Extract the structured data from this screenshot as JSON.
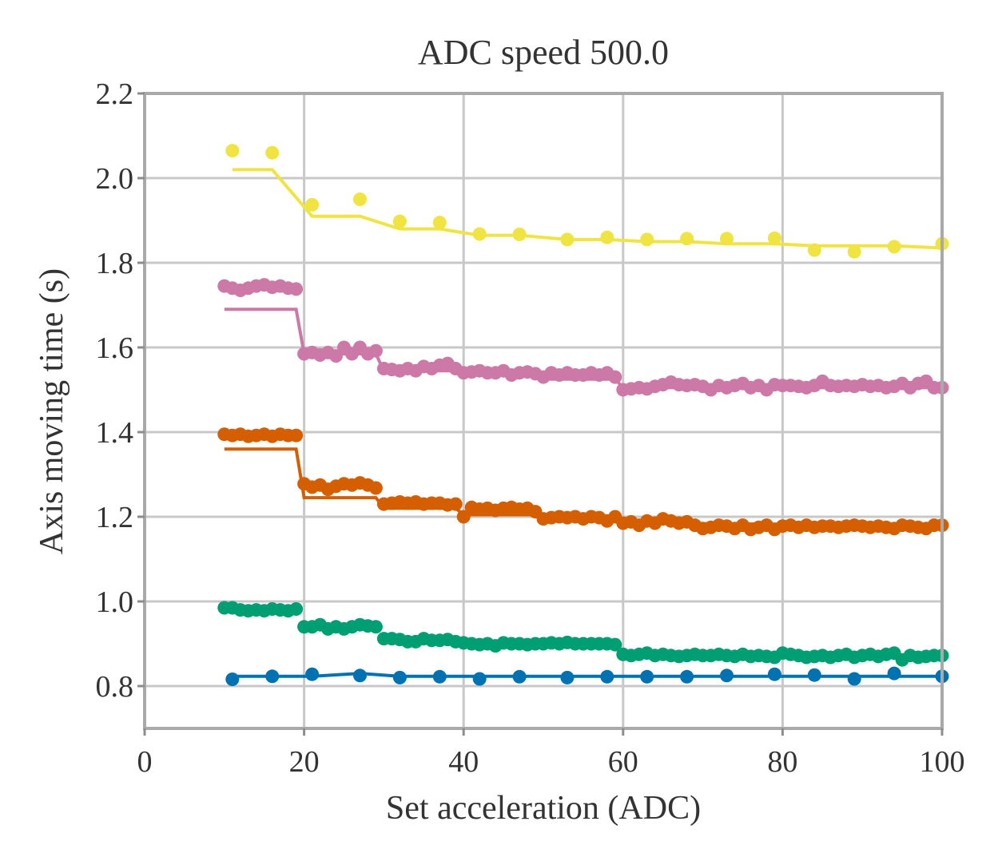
{
  "chart_data": {
    "type": "scatter",
    "title": "ADC speed 500.0",
    "xlabel": "Set acceleration (ADC)",
    "ylabel": "Axis moving time (s)",
    "xlim": [
      0,
      100
    ],
    "ylim": [
      0.7,
      2.2
    ],
    "xticks": [
      0,
      20,
      40,
      60,
      80,
      100
    ],
    "xtick_labels": [
      "0",
      "20",
      "40",
      "60",
      "80",
      "100"
    ],
    "yticks": [
      0.8,
      1.0,
      1.2,
      1.4,
      1.6,
      1.8,
      2.0,
      2.2
    ],
    "ytick_labels": [
      "0.8",
      "1.0",
      "1.2",
      "1.4",
      "1.6",
      "1.8",
      "2.0",
      "2.2"
    ],
    "grid": true,
    "legend": "none",
    "series": [
      {
        "color": "#f0e442",
        "points": {
          "x": [
            11,
            16,
            21,
            27,
            32,
            37,
            42,
            47,
            53,
            58,
            63,
            68,
            73,
            79,
            84,
            89,
            94,
            100
          ],
          "y": [
            2.065,
            2.06,
            1.937,
            1.95,
            1.898,
            1.895,
            1.868,
            1.867,
            1.855,
            1.86,
            1.855,
            1.857,
            1.857,
            1.858,
            1.83,
            1.826,
            1.838,
            1.845
          ]
        },
        "line": {
          "x": [
            11,
            16,
            21,
            27,
            32,
            37,
            42,
            47,
            53,
            58,
            63,
            68,
            73,
            79,
            84,
            89,
            94,
            100
          ],
          "y": [
            2.02,
            2.02,
            1.91,
            1.91,
            1.88,
            1.88,
            1.865,
            1.865,
            1.855,
            1.855,
            1.85,
            1.85,
            1.845,
            1.845,
            1.84,
            1.84,
            1.84,
            1.835
          ]
        }
      },
      {
        "color": "#cc79a7",
        "points": {
          "x": [
            10,
            11,
            12,
            13,
            14,
            15,
            16,
            17,
            18,
            19,
            20,
            21,
            22,
            23,
            24,
            25,
            26,
            27,
            28,
            29,
            30,
            31,
            32,
            33,
            34,
            35,
            36,
            37,
            38,
            39,
            40,
            41,
            42,
            43,
            44,
            45,
            46,
            47,
            48,
            49,
            50,
            51,
            52,
            53,
            54,
            55,
            56,
            57,
            58,
            59,
            60,
            61,
            62,
            63,
            64,
            65,
            66,
            67,
            68,
            69,
            70,
            71,
            72,
            73,
            74,
            75,
            76,
            77,
            78,
            79,
            80,
            81,
            82,
            83,
            84,
            85,
            86,
            87,
            88,
            89,
            90,
            91,
            92,
            93,
            94,
            95,
            96,
            97,
            98,
            99,
            100
          ],
          "y": [
            1.745,
            1.74,
            1.735,
            1.74,
            1.745,
            1.748,
            1.742,
            1.745,
            1.74,
            1.738,
            1.585,
            1.588,
            1.582,
            1.588,
            1.58,
            1.6,
            1.585,
            1.6,
            1.585,
            1.592,
            1.55,
            1.548,
            1.545,
            1.55,
            1.545,
            1.555,
            1.55,
            1.558,
            1.562,
            1.55,
            1.54,
            1.542,
            1.545,
            1.54,
            1.54,
            1.545,
            1.535,
            1.54,
            1.542,
            1.538,
            1.53,
            1.54,
            1.535,
            1.54,
            1.535,
            1.535,
            1.54,
            1.535,
            1.54,
            1.53,
            1.5,
            1.502,
            1.505,
            1.502,
            1.508,
            1.512,
            1.518,
            1.512,
            1.51,
            1.512,
            1.508,
            1.5,
            1.51,
            1.505,
            1.51,
            1.515,
            1.505,
            1.51,
            1.5,
            1.512,
            1.51,
            1.51,
            1.508,
            1.505,
            1.51,
            1.52,
            1.51,
            1.508,
            1.51,
            1.508,
            1.512,
            1.508,
            1.51,
            1.505,
            1.508,
            1.515,
            1.505,
            1.515,
            1.52,
            1.505,
            1.505
          ]
        },
        "line": {
          "x": [
            10,
            19,
            20,
            29,
            30,
            39,
            40,
            49,
            50,
            59,
            60,
            100
          ],
          "y": [
            1.69,
            1.69,
            1.585,
            1.585,
            1.545,
            1.545,
            1.535,
            1.535,
            1.525,
            1.525,
            1.505,
            1.505
          ]
        }
      },
      {
        "color": "#d55e00",
        "points": {
          "x": [
            10,
            11,
            12,
            13,
            14,
            15,
            16,
            17,
            18,
            19,
            20,
            21,
            22,
            23,
            24,
            25,
            26,
            27,
            28,
            29,
            30,
            31,
            32,
            33,
            34,
            35,
            36,
            37,
            38,
            39,
            40,
            41,
            42,
            43,
            44,
            45,
            46,
            47,
            48,
            49,
            50,
            51,
            52,
            53,
            54,
            55,
            56,
            57,
            58,
            59,
            60,
            61,
            62,
            63,
            64,
            65,
            66,
            67,
            68,
            69,
            70,
            71,
            72,
            73,
            74,
            75,
            76,
            77,
            78,
            79,
            80,
            81,
            82,
            83,
            84,
            85,
            86,
            87,
            88,
            89,
            90,
            91,
            92,
            93,
            94,
            95,
            96,
            97,
            98,
            99,
            100
          ],
          "y": [
            1.395,
            1.392,
            1.395,
            1.39,
            1.392,
            1.395,
            1.39,
            1.395,
            1.392,
            1.392,
            1.278,
            1.27,
            1.275,
            1.265,
            1.272,
            1.278,
            1.275,
            1.28,
            1.275,
            1.268,
            1.23,
            1.232,
            1.235,
            1.232,
            1.235,
            1.23,
            1.232,
            1.232,
            1.228,
            1.23,
            1.2,
            1.222,
            1.218,
            1.22,
            1.215,
            1.22,
            1.222,
            1.218,
            1.22,
            1.212,
            1.195,
            1.198,
            1.2,
            1.198,
            1.2,
            1.195,
            1.2,
            1.198,
            1.19,
            1.2,
            1.185,
            1.188,
            1.18,
            1.19,
            1.185,
            1.195,
            1.19,
            1.185,
            1.188,
            1.18,
            1.172,
            1.175,
            1.18,
            1.178,
            1.172,
            1.18,
            1.17,
            1.175,
            1.18,
            1.17,
            1.178,
            1.18,
            1.175,
            1.18,
            1.175,
            1.178,
            1.178,
            1.175,
            1.178,
            1.18,
            1.178,
            1.175,
            1.178,
            1.175,
            1.172,
            1.18,
            1.178,
            1.175,
            1.172,
            1.18,
            1.18
          ]
        },
        "line": {
          "x": [
            10,
            19,
            20,
            29,
            30,
            39,
            40,
            49,
            50,
            59,
            60,
            100
          ],
          "y": [
            1.36,
            1.36,
            1.245,
            1.245,
            1.22,
            1.22,
            1.205,
            1.205,
            1.195,
            1.195,
            1.185,
            1.18
          ]
        }
      },
      {
        "color": "#009e73",
        "points": {
          "x": [
            10,
            11,
            12,
            13,
            14,
            15,
            16,
            17,
            18,
            19,
            20,
            21,
            22,
            23,
            24,
            25,
            26,
            27,
            28,
            29,
            30,
            31,
            32,
            33,
            34,
            35,
            36,
            37,
            38,
            39,
            40,
            41,
            42,
            43,
            44,
            45,
            46,
            47,
            48,
            49,
            50,
            51,
            52,
            53,
            54,
            55,
            56,
            57,
            58,
            59,
            60,
            61,
            62,
            63,
            64,
            65,
            66,
            67,
            68,
            69,
            70,
            71,
            72,
            73,
            74,
            75,
            76,
            77,
            78,
            79,
            80,
            81,
            82,
            83,
            84,
            85,
            86,
            87,
            88,
            89,
            90,
            91,
            92,
            93,
            94,
            95,
            96,
            97,
            98,
            99,
            100
          ],
          "y": [
            0.985,
            0.985,
            0.98,
            0.978,
            0.98,
            0.978,
            0.982,
            0.98,
            0.978,
            0.982,
            0.94,
            0.94,
            0.945,
            0.935,
            0.94,
            0.935,
            0.94,
            0.945,
            0.942,
            0.94,
            0.912,
            0.912,
            0.91,
            0.905,
            0.905,
            0.912,
            0.908,
            0.908,
            0.91,
            0.905,
            0.902,
            0.9,
            0.898,
            0.9,
            0.895,
            0.902,
            0.9,
            0.9,
            0.898,
            0.9,
            0.9,
            0.902,
            0.9,
            0.903,
            0.9,
            0.9,
            0.9,
            0.9,
            0.9,
            0.898,
            0.875,
            0.872,
            0.875,
            0.878,
            0.872,
            0.875,
            0.872,
            0.87,
            0.872,
            0.875,
            0.872,
            0.872,
            0.875,
            0.872,
            0.87,
            0.875,
            0.87,
            0.872,
            0.87,
            0.868,
            0.878,
            0.875,
            0.872,
            0.868,
            0.87,
            0.872,
            0.868,
            0.872,
            0.875,
            0.868,
            0.872,
            0.875,
            0.87,
            0.875,
            0.878,
            0.862,
            0.872,
            0.868,
            0.87,
            0.872,
            0.872
          ]
        },
        "line": null
      },
      {
        "color": "#0072b2",
        "points": {
          "x": [
            11,
            16,
            21,
            27,
            32,
            37,
            42,
            47,
            53,
            58,
            63,
            68,
            73,
            79,
            84,
            89,
            94,
            100
          ],
          "y": [
            0.816,
            0.823,
            0.828,
            0.825,
            0.82,
            0.822,
            0.817,
            0.822,
            0.82,
            0.822,
            0.822,
            0.822,
            0.825,
            0.828,
            0.826,
            0.817,
            0.83,
            0.823
          ]
        },
        "line": {
          "x": [
            11,
            16,
            21,
            27,
            32,
            37,
            42,
            47,
            53,
            58,
            63,
            68,
            73,
            79,
            84,
            89,
            94,
            100
          ],
          "y": [
            0.823,
            0.823,
            0.823,
            0.83,
            0.823,
            0.823,
            0.823,
            0.823,
            0.823,
            0.823,
            0.823,
            0.823,
            0.823,
            0.823,
            0.823,
            0.823,
            0.823,
            0.823
          ]
        }
      }
    ]
  }
}
